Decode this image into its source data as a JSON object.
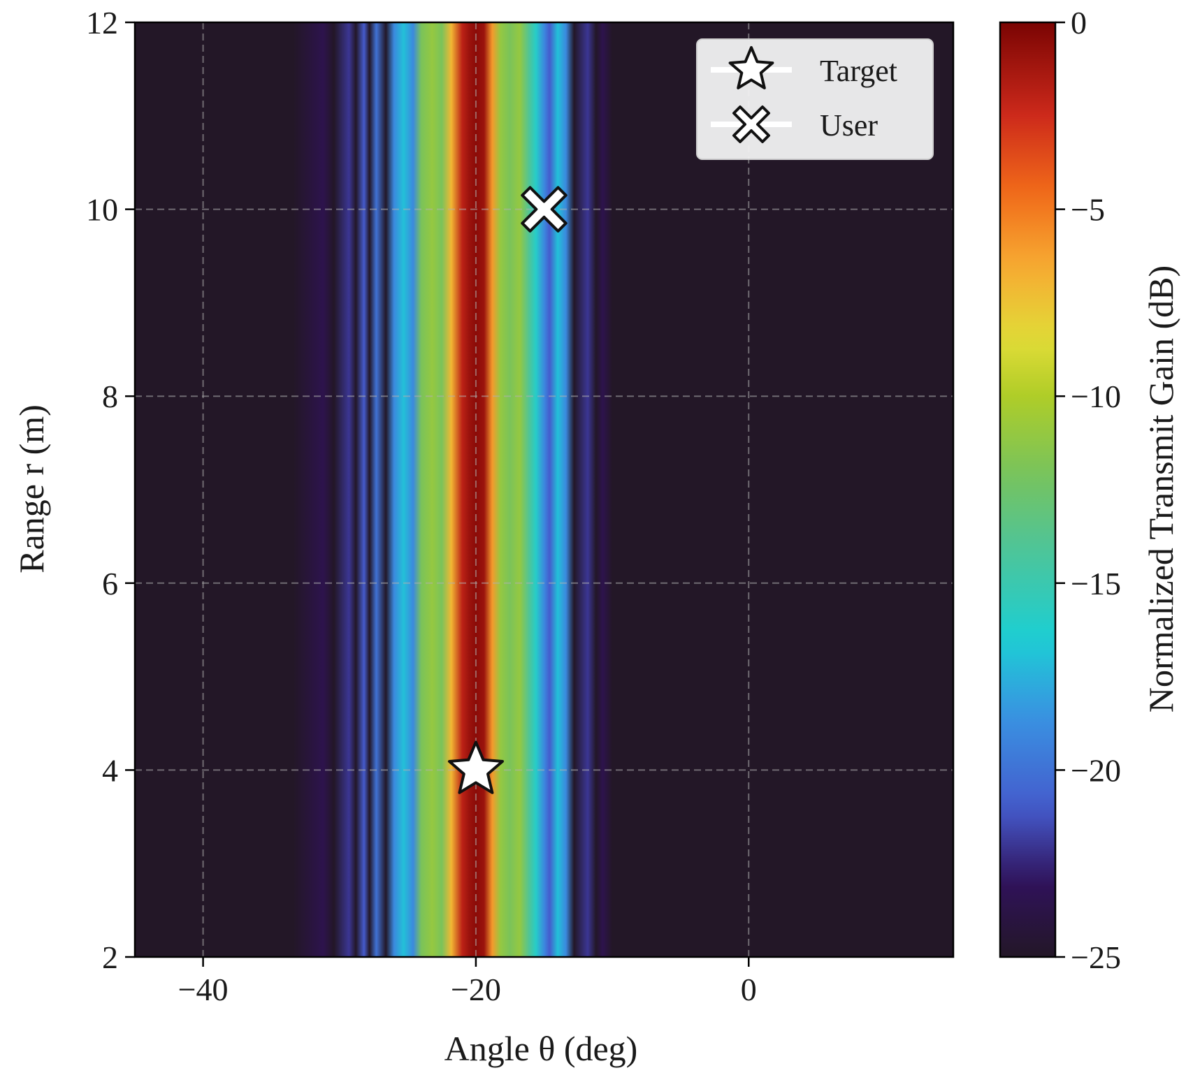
{
  "chart_data": {
    "type": "heatmap",
    "title": "",
    "xlabel": "Angle θ (deg)",
    "ylabel": "Range r (m)",
    "colorbar_label": "Normalized Transmit Gain (dB)",
    "xlim": [
      -45,
      15
    ],
    "ylim": [
      2,
      12
    ],
    "clim": [
      -25,
      0
    ],
    "colormap": "turbo",
    "grid": true,
    "x_ticks": [
      -40,
      -20,
      0
    ],
    "x_tick_labels": [
      "−40",
      "−20",
      "0"
    ],
    "y_ticks": [
      2,
      4,
      6,
      8,
      10,
      12
    ],
    "y_tick_labels": [
      "2",
      "4",
      "6",
      "8",
      "10",
      "12"
    ],
    "cbar_ticks": [
      0,
      -5,
      -10,
      -15,
      -20,
      -25
    ],
    "cbar_tick_labels": [
      "0",
      "−5",
      "−10",
      "−15",
      "−20",
      "−25"
    ],
    "beam_profile": {
      "description_units": "angle in deg, gain in dB",
      "angles": [
        -33.4,
        -31.2,
        -30.4,
        -29.3,
        -28.8,
        -28.2,
        -27.8,
        -27.3,
        -26.6,
        -26.0,
        -25.3,
        -24.6,
        -24.0,
        -23.2,
        -22.5,
        -21.8,
        -21.0,
        -20.5,
        -20.0,
        -19.4,
        -18.8,
        -18.2,
        -17.5,
        -16.8,
        -16.1,
        -15.6,
        -15.0,
        -14.6,
        -14.0,
        -13.4,
        -12.8,
        -11.8,
        -11.2,
        -10.7,
        -10.0
      ],
      "gains": [
        -25,
        -23.5,
        -25,
        -22,
        -25,
        -21,
        -25,
        -20,
        -25,
        -19,
        -17,
        -19,
        -12,
        -11,
        -12,
        -7,
        -2,
        -1,
        -0.5,
        -1,
        -6,
        -11,
        -12,
        -11,
        -14,
        -16,
        -19,
        -21,
        -17,
        -19,
        -25,
        -22,
        -25,
        -23.5,
        -25
      ]
    },
    "series": [
      {
        "name": "Target",
        "marker": "star",
        "x": [
          -20
        ],
        "y": [
          4
        ]
      },
      {
        "name": "User",
        "marker": "X",
        "x": [
          -15
        ],
        "y": [
          10
        ]
      }
    ]
  }
}
